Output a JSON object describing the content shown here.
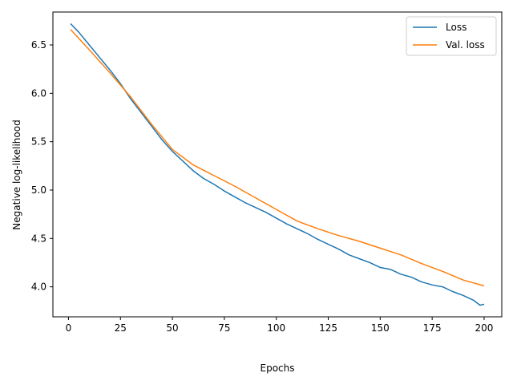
{
  "chart_data": {
    "type": "line",
    "title": "",
    "xlabel": "Epochs",
    "ylabel": "Negative log-likelihood",
    "xlim": [
      -7.5,
      208.5
    ],
    "ylim": [
      3.69,
      6.84
    ],
    "xticks": [
      0,
      25,
      50,
      75,
      100,
      125,
      150,
      175,
      200
    ],
    "yticks": [
      4.0,
      4.5,
      5.0,
      5.5,
      6.0,
      6.5
    ],
    "xtick_labels": [
      "0",
      "25",
      "50",
      "75",
      "100",
      "125",
      "150",
      "175",
      "200"
    ],
    "ytick_labels": [
      "4.0",
      "4.5",
      "5.0",
      "5.5",
      "6.0",
      "6.5"
    ],
    "grid": false,
    "legend_position": "top-right",
    "series": [
      {
        "name": "Loss",
        "color": "#1f77b4",
        "x": [
          1,
          5,
          10,
          15,
          20,
          25,
          30,
          35,
          40,
          45,
          50,
          55,
          60,
          65,
          70,
          75,
          80,
          85,
          90,
          95,
          100,
          105,
          110,
          115,
          120,
          125,
          130,
          135,
          140,
          145,
          150,
          155,
          160,
          165,
          170,
          175,
          180,
          185,
          190,
          195,
          198,
          200
        ],
        "y": [
          6.72,
          6.63,
          6.5,
          6.37,
          6.24,
          6.1,
          5.94,
          5.8,
          5.66,
          5.52,
          5.4,
          5.3,
          5.2,
          5.12,
          5.06,
          4.99,
          4.93,
          4.87,
          4.82,
          4.77,
          4.71,
          4.65,
          4.6,
          4.55,
          4.49,
          4.44,
          4.39,
          4.33,
          4.29,
          4.25,
          4.2,
          4.18,
          4.13,
          4.1,
          4.05,
          4.02,
          4.0,
          3.95,
          3.91,
          3.86,
          3.81,
          3.82
        ]
      },
      {
        "name": "Val. loss",
        "color": "#ff7f0e",
        "x": [
          1,
          10,
          20,
          30,
          40,
          50,
          60,
          70,
          80,
          90,
          100,
          110,
          120,
          130,
          140,
          150,
          160,
          170,
          180,
          190,
          200
        ],
        "y": [
          6.66,
          6.45,
          6.21,
          5.96,
          5.68,
          5.42,
          5.26,
          5.15,
          5.04,
          4.92,
          4.8,
          4.68,
          4.6,
          4.53,
          4.47,
          4.4,
          4.33,
          4.24,
          4.16,
          4.07,
          4.01
        ]
      }
    ]
  }
}
